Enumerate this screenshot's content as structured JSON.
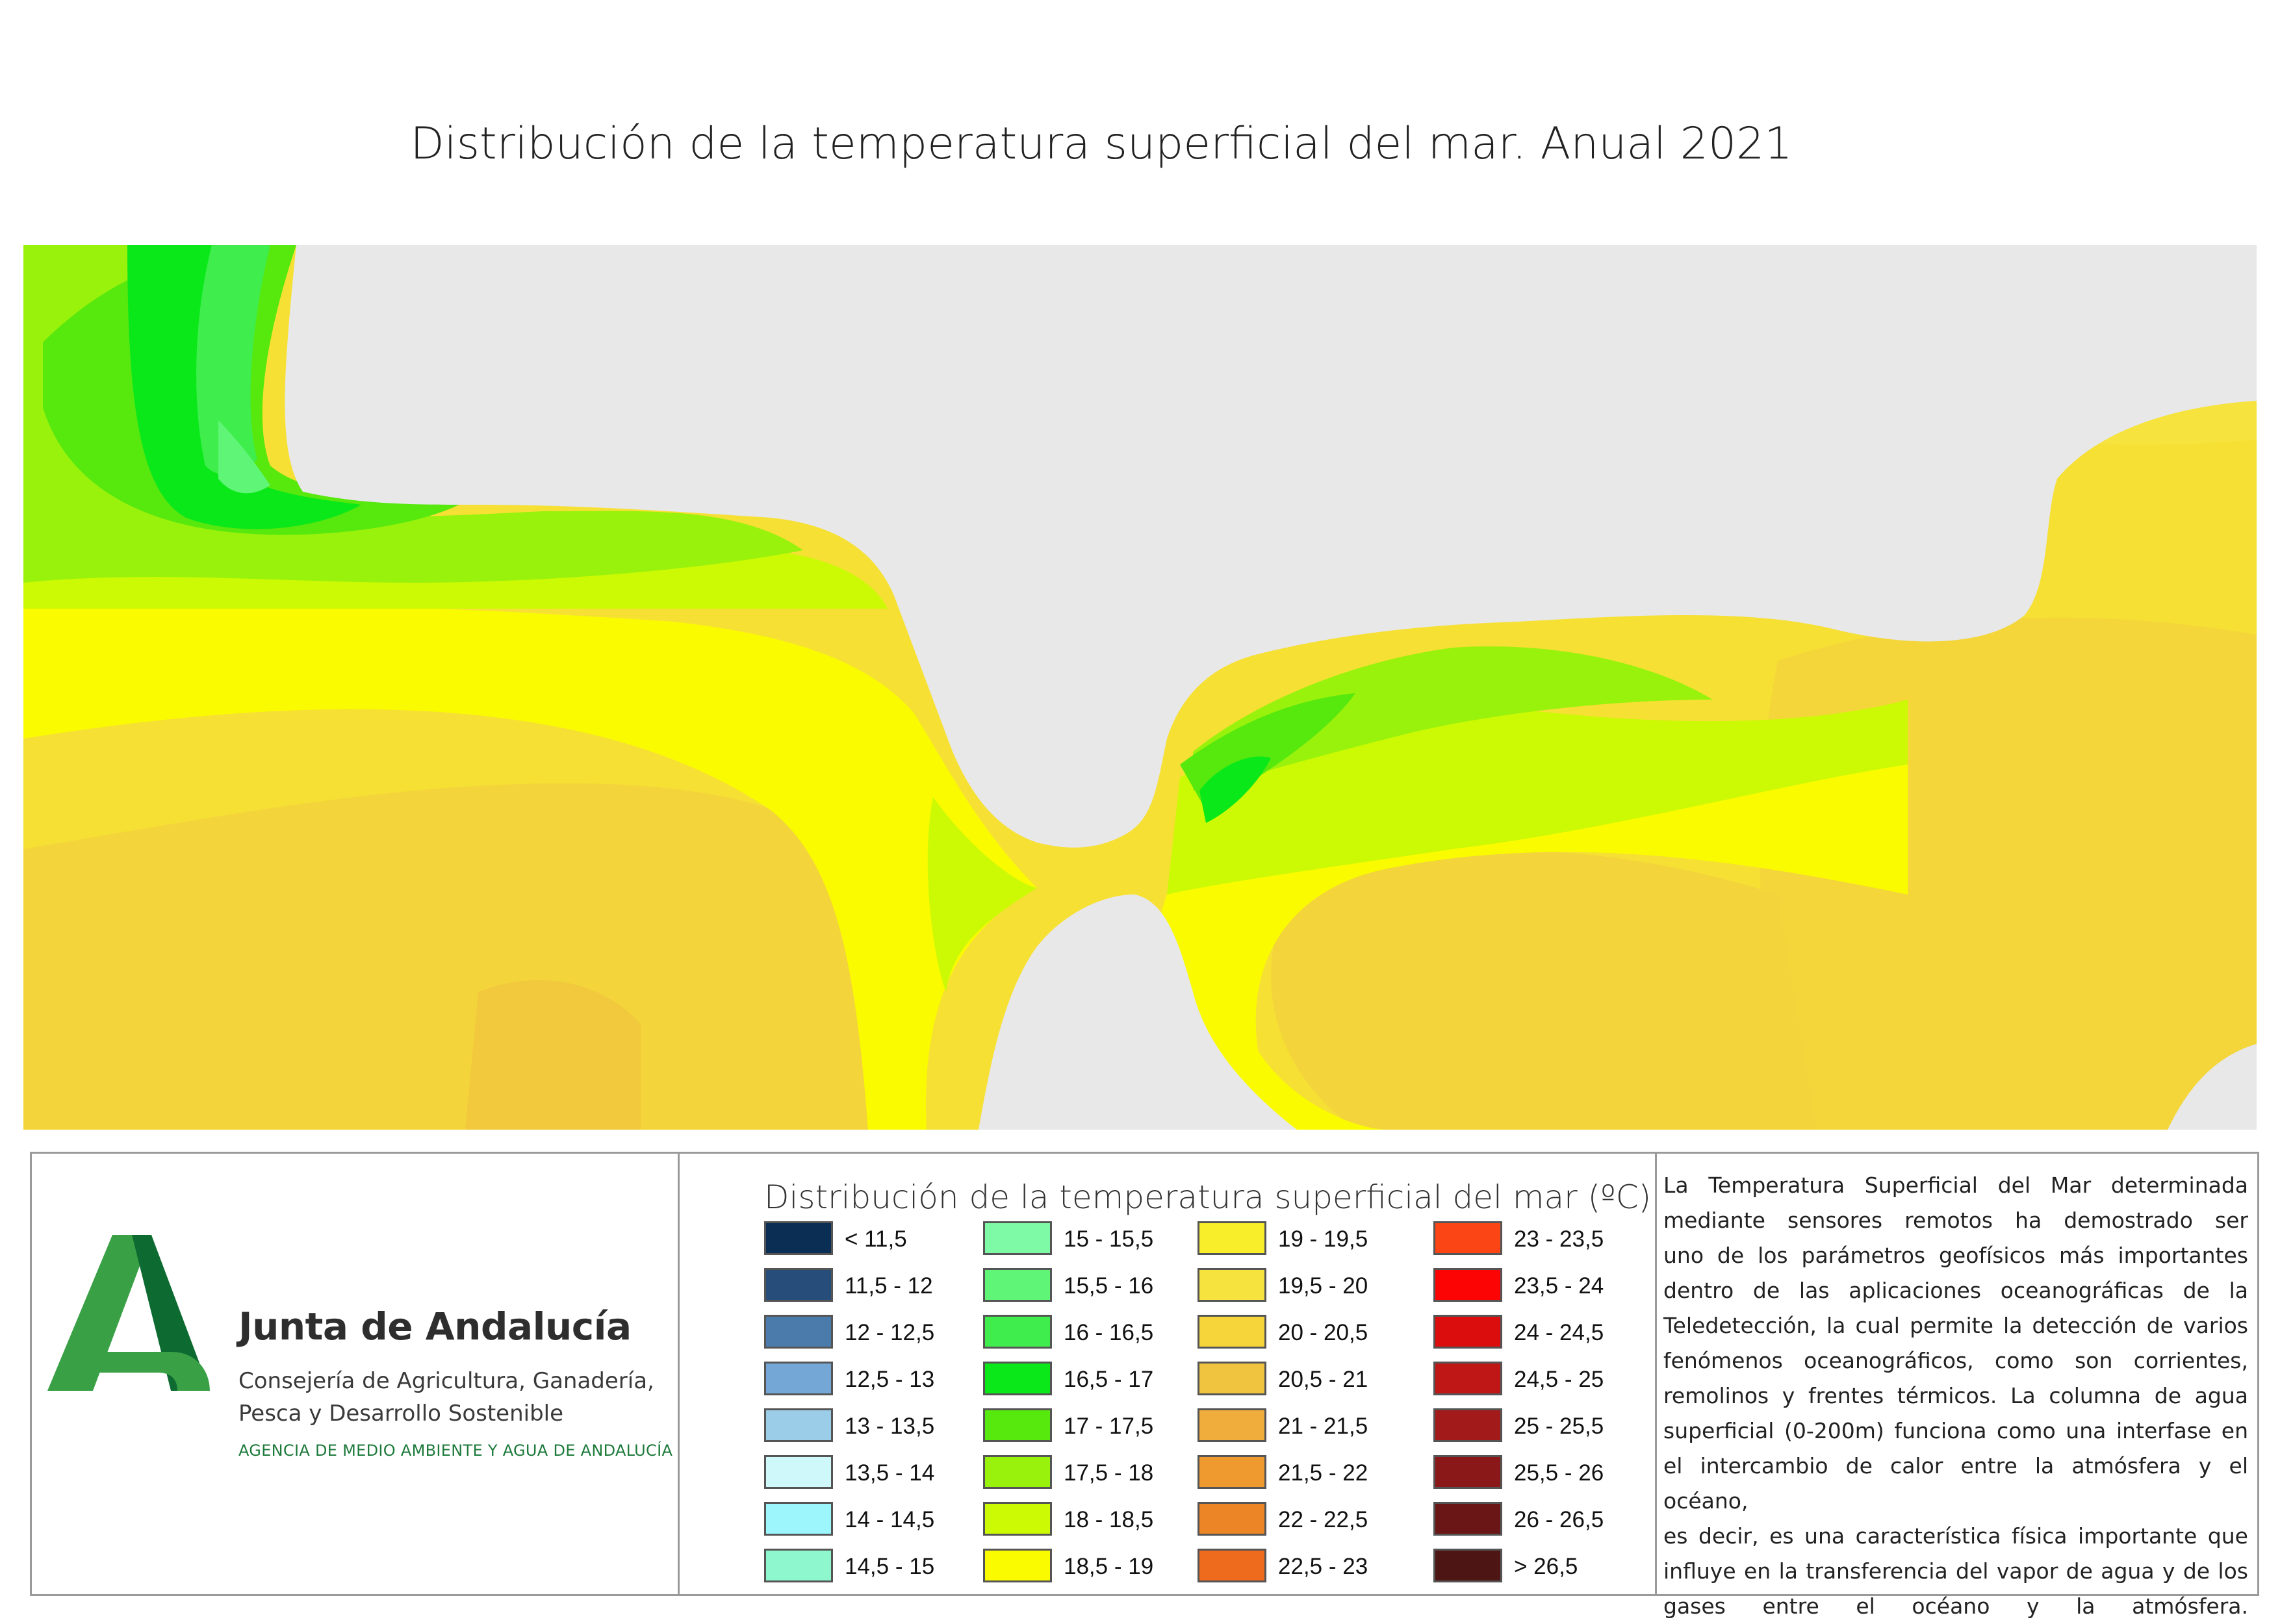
{
  "title": "Distribución de la temperatura superficial del mar. Anual 2021",
  "colors": {
    "land": "#e8e8e8",
    "accent_green": "#1d7a3b",
    "logo_light": "#3aa045",
    "logo_dark": "#0d6b32"
  },
  "logo": {
    "name": "Junta de Andalucía",
    "department_line1": "Consejería de Agricultura, Ganadería,",
    "department_line2": "Pesca y Desarrollo Sostenible",
    "agency": "AGENCIA DE MEDIO AMBIENTE Y AGUA DE ANDALUCÍA"
  },
  "legend": {
    "title": "Distribución de la temperatura superficial del mar  (ºC)",
    "columns": [
      [
        {
          "label": "< 11,5",
          "color": "#0a2e54"
        },
        {
          "label": "11,5 - 12",
          "color": "#274d7a"
        },
        {
          "label": "12 - 12,5",
          "color": "#4b7baa"
        },
        {
          "label": "12,5 - 13",
          "color": "#74a7d6"
        },
        {
          "label": "13 - 13,5",
          "color": "#9ccde8"
        },
        {
          "label": "13,5 - 14",
          "color": "#cff8fb"
        },
        {
          "label": "14 - 14,5",
          "color": "#9cf6fb"
        },
        {
          "label": "14,5 - 15",
          "color": "#8ef7cd"
        }
      ],
      [
        {
          "label": "15 - 15,5",
          "color": "#7efaa6"
        },
        {
          "label": "15,5 - 16",
          "color": "#5ff576"
        },
        {
          "label": "16 - 16,5",
          "color": "#3fee4c"
        },
        {
          "label": "16,5 - 17",
          "color": "#0ae81a"
        },
        {
          "label": "17 - 17,5",
          "color": "#57e80e"
        },
        {
          "label": "17,5 - 18",
          "color": "#99f20c"
        },
        {
          "label": "18 - 18,5",
          "color": "#ccfa04"
        },
        {
          "label": "18,5 - 19",
          "color": "#fbfb00"
        }
      ],
      [
        {
          "label": "19 - 19,5",
          "color": "#f8ef2a"
        },
        {
          "label": "19,5 - 20",
          "color": "#f7e33d"
        },
        {
          "label": "20 - 20,5",
          "color": "#f5d53a"
        },
        {
          "label": "20,5 - 21",
          "color": "#f1c43f"
        },
        {
          "label": "21 - 21,5",
          "color": "#f0ad3b"
        },
        {
          "label": "21,5 - 22",
          "color": "#ef9a2e"
        },
        {
          "label": "22 - 22,5",
          "color": "#ec8525"
        },
        {
          "label": "22,5 - 23",
          "color": "#ee6a1c"
        }
      ],
      [
        {
          "label": "23 - 23,5",
          "color": "#fb4514"
        },
        {
          "label": "23,5 - 24",
          "color": "#fd0404"
        },
        {
          "label": "24 - 24,5",
          "color": "#db0d0d"
        },
        {
          "label": "24,5 - 25",
          "color": "#bf1616"
        },
        {
          "label": "25 - 25,5",
          "color": "#a21a1a"
        },
        {
          "label": "25,5 - 26",
          "color": "#8b1818"
        },
        {
          "label": "26 - 26,5",
          "color": "#6a1616"
        },
        {
          "label": "> 26,5",
          "color": "#4e1515"
        }
      ]
    ]
  },
  "description": [
    "La Temperatura Superficial del Mar determinada",
    "mediante sensores remotos ha demostrado ser",
    "uno de los parámetros geofísicos más importantes",
    "dentro de las aplicaciones oceanográficas de la",
    "Teledetección, la cual permite la detección de varios",
    "fenómenos oceanográficos, como son corrientes,",
    "remolinos y frentes térmicos. La columna de agua",
    "superficial (0-200m) funciona como una interfase en",
    "el intercambio de calor entre la atmósfera y el océano,",
    "es decir, es una característica física importante que",
    "influye en la transferencia del vapor de agua y de los",
    "gases entre el océano y la atmósfera."
  ]
}
